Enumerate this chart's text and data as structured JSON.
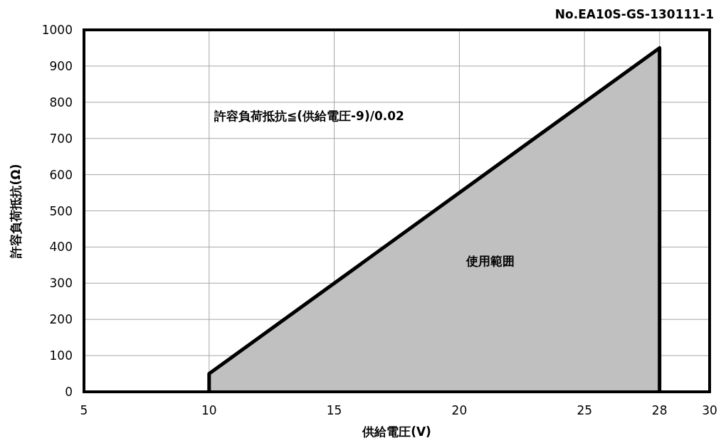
{
  "chart_data": {
    "type": "area",
    "title": "No.EA10S-GS-130111-1",
    "xlabel": "供給電圧(V)",
    "ylabel": "許容負荷抵抗(Ω)",
    "annotations": [
      "許容負荷抵抗≦(供給電圧-9)/0.02",
      "使用範囲"
    ],
    "series": [
      {
        "color": "#c0c0c0",
        "x": [
          10,
          28
        ],
        "values": [
          50,
          950
        ]
      }
    ],
    "xlim": [
      5,
      30
    ],
    "xticks": [
      5,
      10,
      15,
      20,
      25,
      28,
      30
    ],
    "ylim": [
      0,
      1000
    ],
    "yticks": [
      0,
      100,
      200,
      300,
      400,
      500,
      600,
      700,
      800,
      900,
      1000
    ],
    "grid": true
  }
}
